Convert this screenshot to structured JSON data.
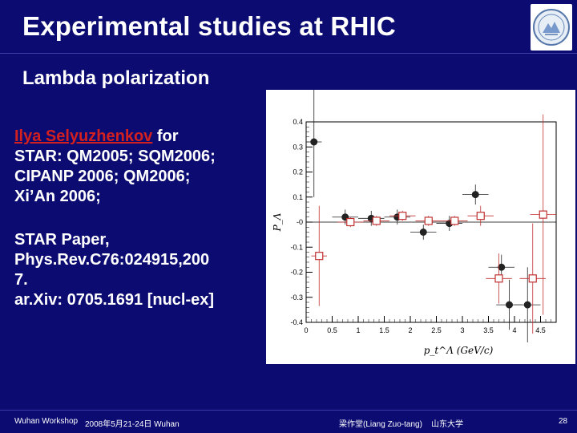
{
  "slide": {
    "title": "Experimental studies at RHIC",
    "subtitle": "Lambda polarization",
    "block1": {
      "author": "Ilya Selyuzhenkov",
      "author_suffix": " for",
      "lines": [
        "STAR: QM2005; SQM2006;",
        "CIPANP 2006; QM2006;",
        "Xi’An 2006;"
      ]
    },
    "block2": {
      "lines": [
        "STAR Paper,",
        "Phys.Rev.C76:024915,200",
        "7.",
        "ar.Xiv: 0705.1691 [nucl-ex]"
      ]
    },
    "footer": {
      "workshop": "Wuhan Workshop",
      "date": "2008年5月21-24日 Wuhan",
      "author": "梁作堂(Liang Zuo-tang)",
      "university": "山东大学",
      "page": "28"
    },
    "colors": {
      "background": "#0b0b72",
      "author_link": "#d22020",
      "open_markers": "#c03030",
      "filled_markers": "#222222"
    }
  },
  "chart_data": {
    "type": "scatter",
    "title": "",
    "xlabel": "p_t^Λ (GeV/c)",
    "ylabel": "P_Λ",
    "xlim": [
      0,
      4.8
    ],
    "ylim": [
      -0.4,
      0.4
    ],
    "x_ticks": [
      "0",
      "0.5",
      "1",
      "1.5",
      "2",
      "2.5",
      "3",
      "3.5",
      "4",
      "4.5"
    ],
    "y_ticks": [
      "0.4",
      "0.3",
      "0.2",
      "0.1",
      "-0",
      "-0.1",
      "-0.2",
      "-0.3",
      "-0.4"
    ],
    "series": [
      {
        "marker": "filled-circle",
        "points": [
          {
            "x": 0.15,
            "y": 0.32,
            "ex": 0.15,
            "ey": 0.22
          },
          {
            "x": 0.75,
            "y": 0.02,
            "ex": 0.25,
            "ey": 0.03
          },
          {
            "x": 1.25,
            "y": 0.015,
            "ex": 0.25,
            "ey": 0.03
          },
          {
            "x": 1.75,
            "y": 0.02,
            "ex": 0.25,
            "ey": 0.03
          },
          {
            "x": 2.25,
            "y": -0.04,
            "ex": 0.25,
            "ey": 0.03
          },
          {
            "x": 2.75,
            "y": -0.005,
            "ex": 0.25,
            "ey": 0.03
          },
          {
            "x": 3.25,
            "y": 0.11,
            "ex": 0.25,
            "ey": 0.04
          },
          {
            "x": 3.75,
            "y": -0.18,
            "ex": 0.25,
            "ey": 0.05
          },
          {
            "x": 3.9,
            "y": -0.33,
            "ex": 0.25,
            "ey": 0.1
          },
          {
            "x": 4.25,
            "y": -0.33,
            "ex": 0.25,
            "ey": 0.15
          }
        ]
      },
      {
        "marker": "open-square",
        "points": [
          {
            "x": 0.25,
            "y": -0.135,
            "ex": 0.15,
            "ey": 0.2
          },
          {
            "x": 0.85,
            "y": 0.0,
            "ex": 0.25,
            "ey": 0.02
          },
          {
            "x": 1.35,
            "y": 0.005,
            "ex": 0.25,
            "ey": 0.02
          },
          {
            "x": 1.85,
            "y": 0.025,
            "ex": 0.25,
            "ey": 0.02
          },
          {
            "x": 2.35,
            "y": 0.005,
            "ex": 0.25,
            "ey": 0.02
          },
          {
            "x": 2.85,
            "y": 0.005,
            "ex": 0.25,
            "ey": 0.02
          },
          {
            "x": 3.35,
            "y": 0.025,
            "ex": 0.25,
            "ey": 0.04
          },
          {
            "x": 3.7,
            "y": -0.225,
            "ex": 0.25,
            "ey": 0.1
          },
          {
            "x": 4.35,
            "y": -0.225,
            "ex": 0.25,
            "ey": 0.22
          },
          {
            "x": 4.55,
            "y": 0.03,
            "ex": 0.25,
            "ey": 0.4
          }
        ]
      }
    ]
  }
}
